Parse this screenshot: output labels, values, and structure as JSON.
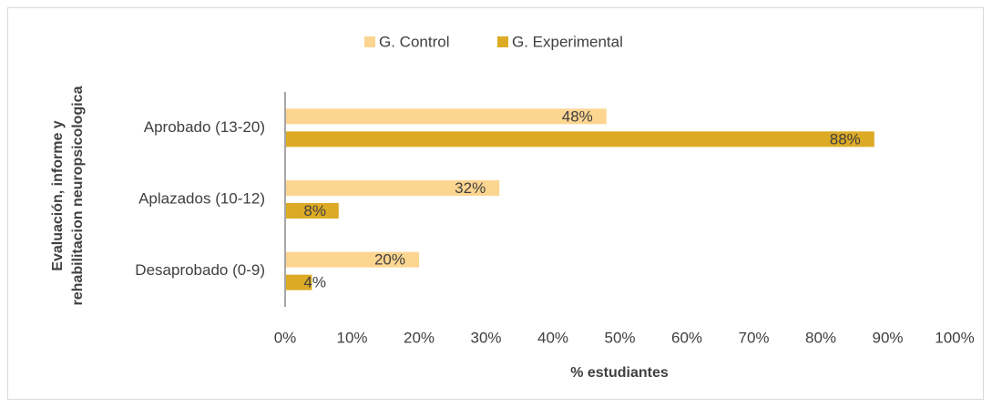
{
  "chart_data": {
    "type": "hbar",
    "y_label": [
      "Evaluación, informe y",
      "rehabilitacion neuropsicologica"
    ],
    "x_label": "% estudiantes",
    "categories": [
      "Aprobado (13-20)",
      "Aplazados (10-12)",
      "Desaprobado (0-9)"
    ],
    "series": [
      {
        "name": "G. Control",
        "color": "#fcd590",
        "values": [
          48,
          32,
          20
        ],
        "value_labels": [
          "48%",
          "32%",
          "20%"
        ]
      },
      {
        "name": "G. Experimental",
        "color": "#dcaa25",
        "values": [
          88,
          8,
          4
        ],
        "value_labels": [
          "88%",
          "8%",
          "4%"
        ]
      }
    ],
    "xlim": [
      0,
      100
    ],
    "xticks": [
      {
        "value": 0,
        "label": "0%"
      },
      {
        "value": 10,
        "label": "10%"
      },
      {
        "value": 20,
        "label": "20%"
      },
      {
        "value": 30,
        "label": "30%"
      },
      {
        "value": 40,
        "label": "40%"
      },
      {
        "value": 50,
        "label": "50%"
      },
      {
        "value": 60,
        "label": "60%"
      },
      {
        "value": 70,
        "label": "70%"
      },
      {
        "value": 80,
        "label": "80%"
      },
      {
        "value": 90,
        "label": "90%"
      },
      {
        "value": 100,
        "label": "100%"
      }
    ],
    "legend": "top"
  }
}
